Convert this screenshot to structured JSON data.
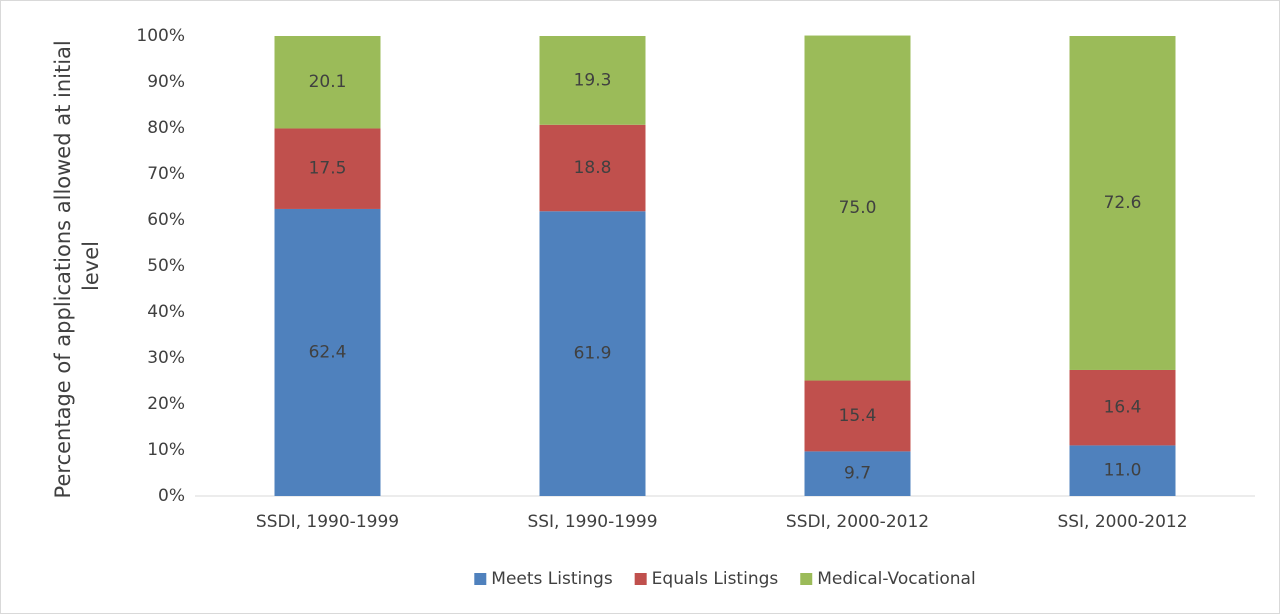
{
  "chart_data": {
    "type": "stacked_bar",
    "y_label": "Percentage of applications allowed at initial level",
    "categories": [
      "SSDI, 1990-1999",
      "SSI, 1990-1999",
      "SSDI, 2000-2012",
      "SSI, 2000-2012"
    ],
    "series": [
      {
        "name": "Meets Listings",
        "color": "#4f81bd",
        "values": [
          62.4,
          61.9,
          9.7,
          11.0
        ],
        "value_labels": [
          "62.4",
          "61.9",
          "9.7",
          "11.0"
        ]
      },
      {
        "name": "Equals Listings",
        "color": "#c0504d",
        "values": [
          17.5,
          18.8,
          15.4,
          16.4
        ],
        "value_labels": [
          "17.5",
          "18.8",
          "15.4",
          "16.4"
        ]
      },
      {
        "name": "Medical-Vocational",
        "color": "#9bbb59",
        "values": [
          20.1,
          19.3,
          75.0,
          72.6
        ],
        "value_labels": [
          "20.1",
          "19.3",
          "75.0",
          "72.6"
        ]
      }
    ],
    "ylim": [
      0,
      100
    ],
    "yticks": [
      {
        "value": 0,
        "label": "0%"
      },
      {
        "value": 10,
        "label": "10%"
      },
      {
        "value": 20,
        "label": "20%"
      },
      {
        "value": 30,
        "label": "30%"
      },
      {
        "value": 40,
        "label": "40%"
      },
      {
        "value": 50,
        "label": "50%"
      },
      {
        "value": 60,
        "label": "60%"
      },
      {
        "value": 70,
        "label": "70%"
      },
      {
        "value": 80,
        "label": "80%"
      },
      {
        "value": 90,
        "label": "90%"
      },
      {
        "value": 100,
        "label": "100%"
      }
    ],
    "legend": "bottom",
    "grid": false
  }
}
